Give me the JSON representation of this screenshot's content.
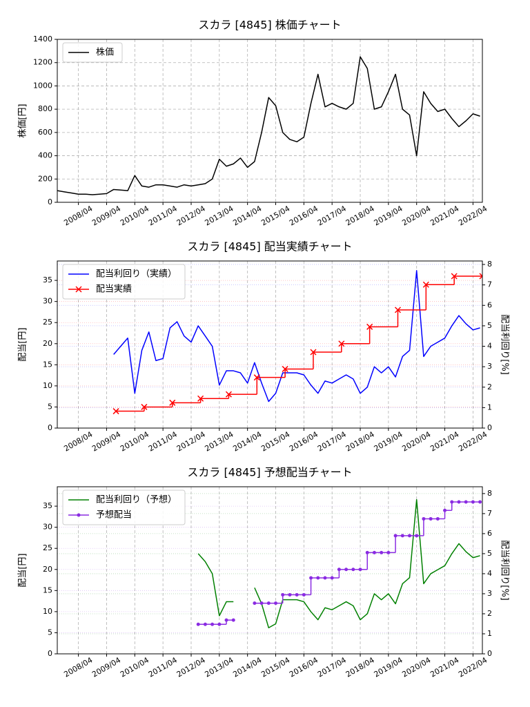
{
  "chart_data": [
    {
      "type": "line",
      "title": "スカラ [4845]  株価チャート",
      "ylabel": "株価[円]",
      "xlim": [
        "2007/07",
        "2022/08"
      ],
      "xticks": [
        "2008/04",
        "2009/04",
        "2010/04",
        "2011/04",
        "2012/04",
        "2013/04",
        "2014/04",
        "2015/04",
        "2016/04",
        "2017/04",
        "2018/04",
        "2019/04",
        "2020/04",
        "2021/04",
        "2022/04"
      ],
      "ylim": [
        0,
        1400
      ],
      "yticks": [
        0,
        200,
        400,
        600,
        800,
        1000,
        1200,
        1400
      ],
      "grid": true,
      "legend": "upper left",
      "series": [
        {
          "name": "株価",
          "color": "#000000",
          "x": [
            "2007/07",
            "2007/10",
            "2008/01",
            "2008/04",
            "2008/07",
            "2008/10",
            "2009/01",
            "2009/04",
            "2009/07",
            "2009/10",
            "2010/01",
            "2010/04",
            "2010/07",
            "2010/10",
            "2011/01",
            "2011/04",
            "2011/07",
            "2011/10",
            "2012/01",
            "2012/04",
            "2012/07",
            "2012/10",
            "2013/01",
            "2013/04",
            "2013/07",
            "2013/10",
            "2014/01",
            "2014/04",
            "2014/07",
            "2014/10",
            "2015/01",
            "2015/04",
            "2015/07",
            "2015/10",
            "2016/01",
            "2016/04",
            "2016/07",
            "2016/10",
            "2017/01",
            "2017/04",
            "2017/07",
            "2017/10",
            "2018/01",
            "2018/04",
            "2018/07",
            "2018/10",
            "2019/01",
            "2019/04",
            "2019/07",
            "2019/10",
            "2020/01",
            "2020/04",
            "2020/07",
            "2020/10",
            "2021/01",
            "2021/04",
            "2021/07",
            "2021/10",
            "2022/01",
            "2022/04",
            "2022/07"
          ],
          "values": [
            100,
            90,
            80,
            70,
            70,
            65,
            70,
            75,
            110,
            105,
            100,
            230,
            140,
            130,
            150,
            150,
            140,
            130,
            150,
            140,
            150,
            160,
            200,
            370,
            310,
            330,
            380,
            300,
            350,
            600,
            900,
            830,
            600,
            540,
            520,
            560,
            850,
            1100,
            820,
            850,
            820,
            800,
            850,
            1250,
            1150,
            800,
            820,
            950,
            1100,
            800,
            750,
            400,
            950,
            850,
            780,
            800,
            720,
            650,
            700,
            760,
            740
          ]
        }
      ]
    },
    {
      "type": "line",
      "title": "スカラ [4845]  配当実績チャート",
      "ylabel": "配当[円]",
      "y2label": "配当利回り[%]",
      "xlim": [
        "2007/07",
        "2022/08"
      ],
      "xticks": [
        "2008/04",
        "2009/04",
        "2010/04",
        "2011/04",
        "2012/04",
        "2013/04",
        "2014/04",
        "2015/04",
        "2016/04",
        "2017/04",
        "2018/04",
        "2019/04",
        "2020/04",
        "2021/04",
        "2022/04"
      ],
      "ylim": [
        0,
        39.6
      ],
      "yticks": [
        0,
        5,
        10,
        15,
        20,
        25,
        30,
        35
      ],
      "y2lim": [
        0,
        8.17
      ],
      "y2ticks": [
        0,
        1,
        2,
        3,
        4,
        5,
        6,
        7,
        8
      ],
      "grid": true,
      "legend": "upper left",
      "series": [
        {
          "name": "配当利回り（実績）",
          "color": "#0000ff",
          "axis": "y2",
          "x": [
            "2009/07",
            "2009/10",
            "2010/01",
            "2010/04",
            "2010/07",
            "2010/10",
            "2011/01",
            "2011/04",
            "2011/07",
            "2011/10",
            "2012/01",
            "2012/04",
            "2012/07",
            "2012/10",
            "2013/01",
            "2013/04",
            "2013/07",
            "2013/10",
            "2014/01",
            "2014/04",
            "2014/07",
            "2014/10",
            "2015/01",
            "2015/04",
            "2015/07",
            "2015/10",
            "2016/01",
            "2016/04",
            "2016/07",
            "2016/10",
            "2017/01",
            "2017/04",
            "2017/07",
            "2017/10",
            "2018/01",
            "2018/04",
            "2018/07",
            "2018/10",
            "2019/01",
            "2019/04",
            "2019/07",
            "2019/10",
            "2020/01",
            "2020/04",
            "2020/07",
            "2020/10",
            "2021/01",
            "2021/04",
            "2021/07",
            "2021/10",
            "2022/01",
            "2022/04",
            "2022/07"
          ],
          "values": [
            3.6,
            4.0,
            4.4,
            1.7,
            3.8,
            4.7,
            3.3,
            3.4,
            4.9,
            5.2,
            4.5,
            4.2,
            5.0,
            4.5,
            4.0,
            2.1,
            2.8,
            2.8,
            2.7,
            2.2,
            3.2,
            2.2,
            1.3,
            1.7,
            2.7,
            2.7,
            2.7,
            2.6,
            2.1,
            1.7,
            2.3,
            2.2,
            2.4,
            2.6,
            2.4,
            1.7,
            2.0,
            3.0,
            2.7,
            3.0,
            2.5,
            3.5,
            3.8,
            7.7,
            3.5,
            4.0,
            4.2,
            4.4,
            5.0,
            5.5,
            5.1,
            4.8,
            4.9
          ]
        },
        {
          "name": "配当実績",
          "color": "#ff0000",
          "drawstyle": "steps-post",
          "marker": "x",
          "x": [
            "2009/08",
            "2010/08",
            "2011/08",
            "2012/08",
            "2013/08",
            "2014/08",
            "2015/08",
            "2016/08",
            "2017/08",
            "2018/08",
            "2019/08",
            "2020/08",
            "2021/08",
            "2022/08"
          ],
          "values": [
            4,
            5,
            6,
            7,
            8,
            12,
            14,
            18,
            20,
            24,
            28,
            34,
            36,
            36
          ]
        }
      ]
    },
    {
      "type": "line",
      "title": "スカラ [4845]  予想配当チャート",
      "ylabel": "配当[円]",
      "y2label": "配当利回り[%]",
      "xlim": [
        "2007/07",
        "2022/08"
      ],
      "xticks": [
        "2008/04",
        "2009/04",
        "2010/04",
        "2011/04",
        "2012/04",
        "2013/04",
        "2014/04",
        "2015/04",
        "2016/04",
        "2017/04",
        "2018/04",
        "2019/04",
        "2020/04",
        "2021/04",
        "2022/04"
      ],
      "ylim": [
        0,
        39.6
      ],
      "yticks": [
        0,
        5,
        10,
        15,
        20,
        25,
        30,
        35
      ],
      "y2lim": [
        0,
        8.34
      ],
      "y2ticks": [
        0,
        1,
        2,
        3,
        4,
        5,
        6,
        7,
        8
      ],
      "grid": true,
      "legend": "upper left",
      "series": [
        {
          "name": "配当利回り（予想）",
          "color": "#008000",
          "axis": "y2",
          "x": [
            "2012/07",
            "2012/10",
            "2013/01",
            "2013/04",
            "2013/07",
            "2013/10",
            "2014/01",
            "2014/04",
            "2014/07",
            "2014/10",
            "2015/01",
            "2015/04",
            "2015/07",
            "2015/10",
            "2016/01",
            "2016/04",
            "2016/07",
            "2016/10",
            "2017/01",
            "2017/04",
            "2017/07",
            "2017/10",
            "2018/01",
            "2018/04",
            "2018/07",
            "2018/10",
            "2019/01",
            "2019/04",
            "2019/07",
            "2019/10",
            "2020/01",
            "2020/04",
            "2020/07",
            "2020/10",
            "2021/01",
            "2021/04",
            "2021/07",
            "2021/10",
            "2022/01",
            "2022/04",
            "2022/07"
          ],
          "values": [
            5.0,
            4.6,
            4.0,
            1.9,
            2.6,
            2.6,
            null,
            null,
            3.3,
            2.5,
            1.3,
            1.5,
            2.7,
            2.7,
            2.7,
            2.6,
            2.1,
            1.7,
            2.3,
            2.2,
            2.4,
            2.6,
            2.4,
            1.7,
            2.0,
            3.0,
            2.7,
            3.0,
            2.5,
            3.5,
            3.8,
            7.7,
            3.5,
            4.0,
            4.2,
            4.4,
            5.0,
            5.5,
            5.1,
            4.8,
            4.9
          ]
        },
        {
          "name": "予想配当",
          "color": "#8a2be2",
          "drawstyle": "steps-post",
          "marker": "o",
          "x": [
            "2012/07",
            "2012/10",
            "2013/01",
            "2013/04",
            "2013/07",
            "2013/10",
            "2014/01",
            "2014/04",
            "2014/07",
            "2014/10",
            "2015/01",
            "2015/04",
            "2015/07",
            "2015/10",
            "2016/01",
            "2016/04",
            "2016/07",
            "2016/10",
            "2017/01",
            "2017/04",
            "2017/07",
            "2017/10",
            "2018/01",
            "2018/04",
            "2018/07",
            "2018/10",
            "2019/01",
            "2019/04",
            "2019/07",
            "2019/10",
            "2020/01",
            "2020/04",
            "2020/07",
            "2020/10",
            "2021/01",
            "2021/04",
            "2021/07",
            "2021/10",
            "2022/01",
            "2022/04",
            "2022/07"
          ],
          "values": [
            7,
            7,
            7,
            7,
            8,
            8,
            null,
            null,
            12,
            12,
            12,
            12,
            14,
            14,
            14,
            14,
            18,
            18,
            18,
            18,
            20,
            20,
            20,
            20,
            24,
            24,
            24,
            24,
            28,
            28,
            28,
            28,
            32,
            32,
            32,
            34,
            36,
            36,
            36,
            36,
            36
          ]
        }
      ]
    }
  ]
}
